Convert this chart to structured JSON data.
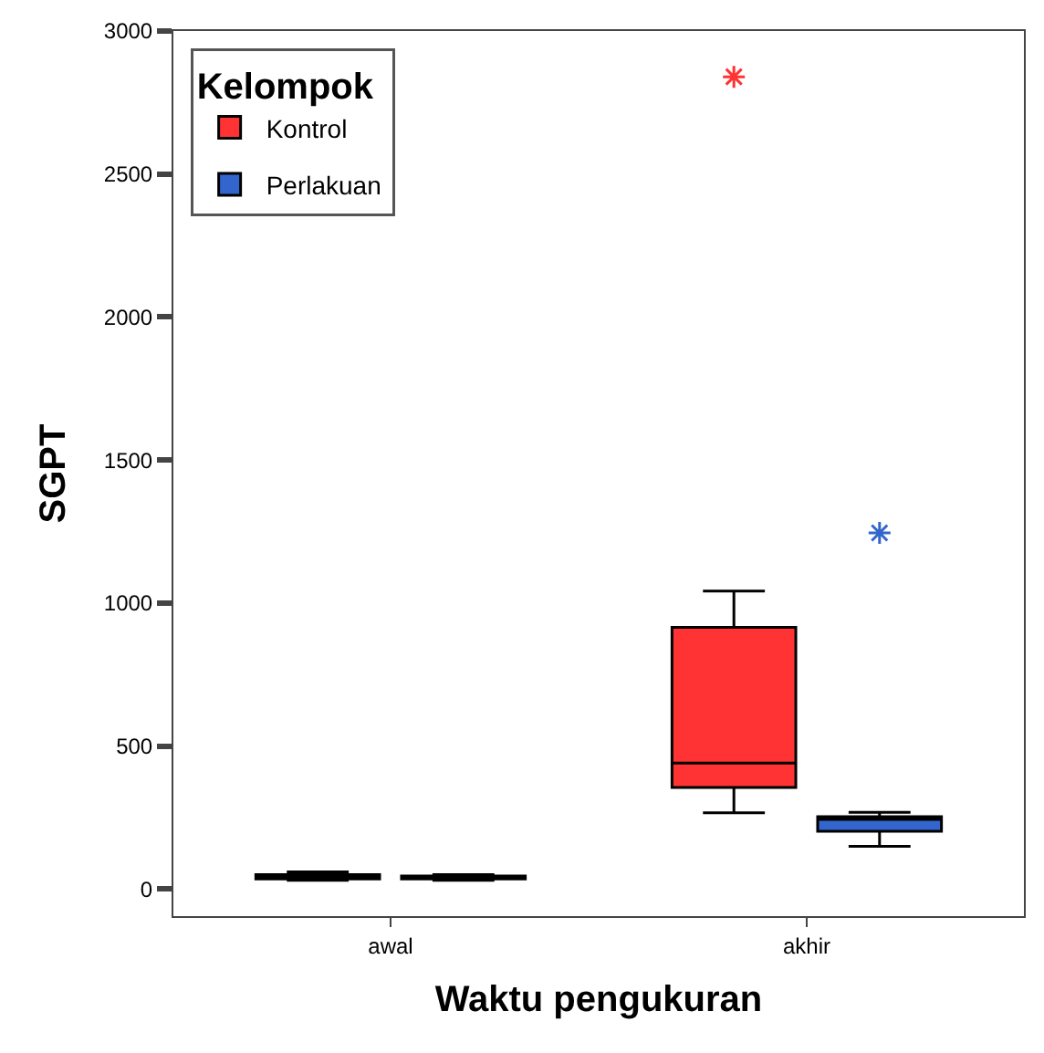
{
  "chart_data": {
    "type": "box",
    "xlabel": "Waktu pengukuran",
    "ylabel": "SGPT",
    "legend_title": "Kelompok",
    "categories": [
      "awal",
      "akhir"
    ],
    "series": [
      {
        "name": "Kontrol",
        "color": "#ff3333",
        "boxes": [
          {
            "low": 30,
            "q1": 35,
            "median": 45,
            "q3": 50,
            "high": 60
          },
          {
            "low": 266,
            "q1": 355,
            "median": 440,
            "q3": 915,
            "high": 1042,
            "outliers": [
              2840
            ]
          }
        ]
      },
      {
        "name": "Perlakuan",
        "color": "#3366cc",
        "boxes": [
          {
            "low": 30,
            "q1": 35,
            "median": 40,
            "q3": 45,
            "high": 50
          },
          {
            "low": 149,
            "q1": 202,
            "median": 243,
            "q3": 253,
            "high": 268,
            "outliers": [
              1245
            ]
          }
        ]
      }
    ],
    "ylim": [
      -95,
      3000
    ],
    "yticks": [
      0,
      500,
      1000,
      1500,
      2000,
      2500,
      3000
    ],
    "legend": "top left"
  }
}
